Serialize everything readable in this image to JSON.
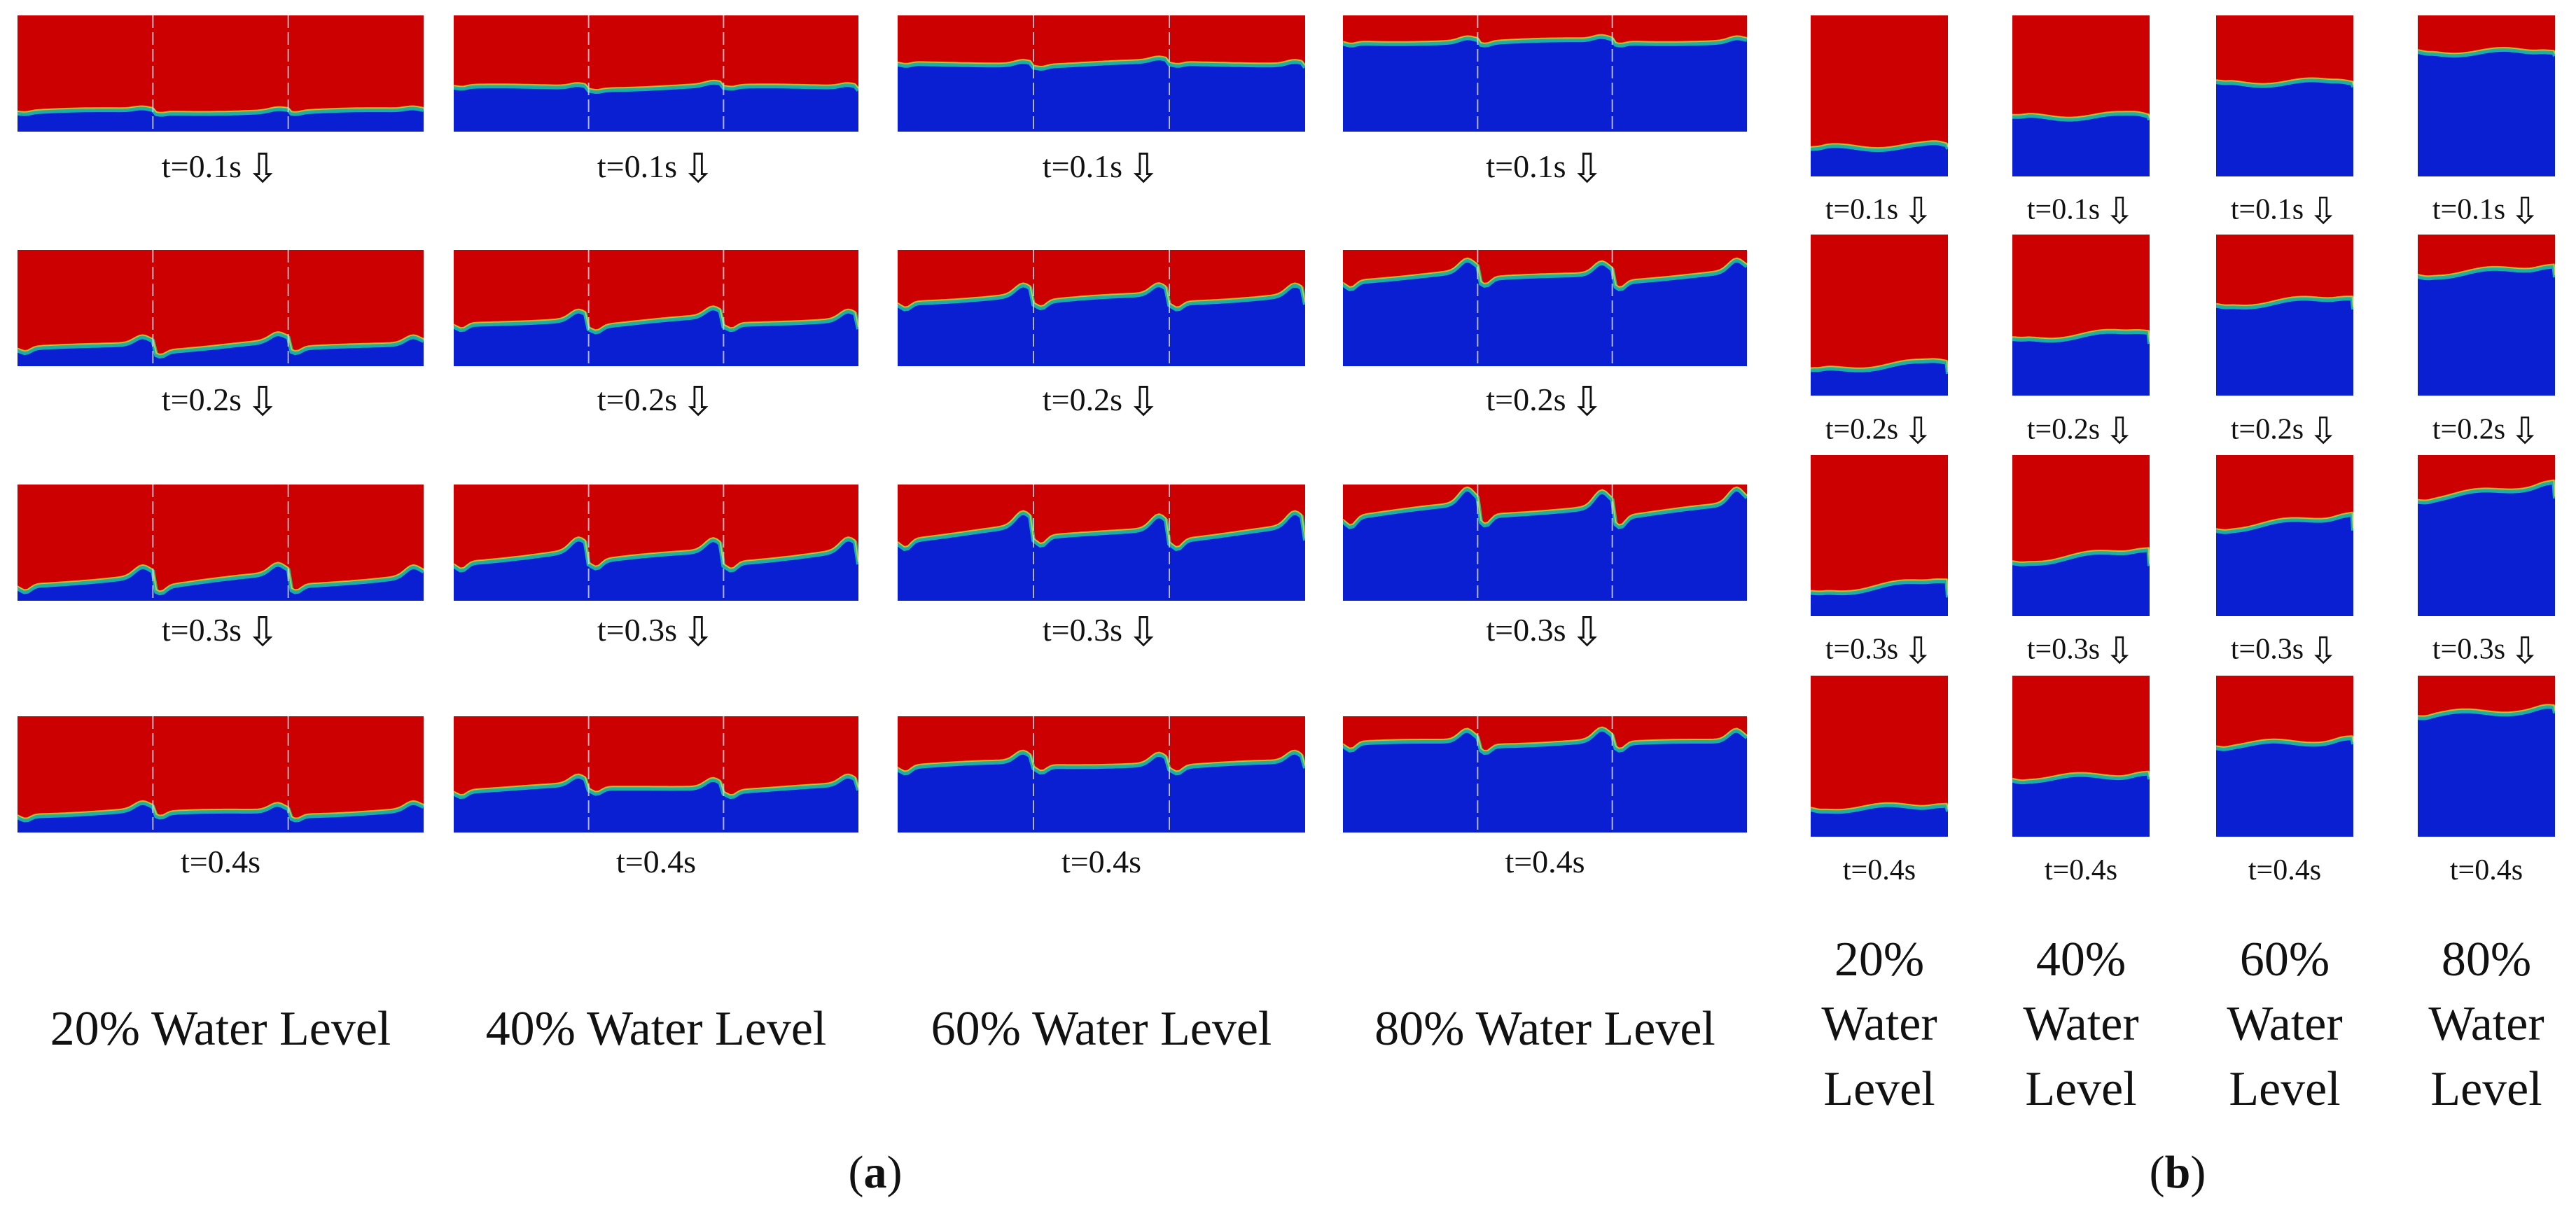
{
  "figure": {
    "colors": {
      "gas": "#cc0000",
      "water": "#0a1fd2",
      "interface_glow": "#19c8a8"
    },
    "part_a": {
      "label": "(a)",
      "label_parts": {
        "open": "(",
        "letter": "a",
        "close": ")"
      },
      "columns": [
        {
          "title": "20% Water Level",
          "water_level_percent": 20
        },
        {
          "title": "40% Water Level",
          "water_level_percent": 40
        },
        {
          "title": "60% Water Level",
          "water_level_percent": 60
        },
        {
          "title": "80% Water Level",
          "water_level_percent": 80
        }
      ],
      "time_labels": [
        "t=0.1s",
        "t=0.2s",
        "t=0.3s",
        "t=0.4s"
      ],
      "arrow_glyph": "⇩",
      "baffles": 2
    },
    "part_b": {
      "label": "(b)",
      "label_parts": {
        "open": "(",
        "letter": "b",
        "close": ")"
      },
      "columns": [
        {
          "title_lines": [
            "20%",
            "Water",
            "Level"
          ],
          "water_level_percent": 20
        },
        {
          "title_lines": [
            "40%",
            "Water",
            "Level"
          ],
          "water_level_percent": 40
        },
        {
          "title_lines": [
            "60%",
            "Water",
            "Level"
          ],
          "water_level_percent": 60
        },
        {
          "title_lines": [
            "80%",
            "Water",
            "Level"
          ],
          "water_level_percent": 80
        }
      ],
      "time_labels": [
        "t=0.1s",
        "t=0.2s",
        "t=0.3s",
        "t=0.4s"
      ],
      "arrow_glyph": "⇩",
      "baffles": 0
    }
  }
}
